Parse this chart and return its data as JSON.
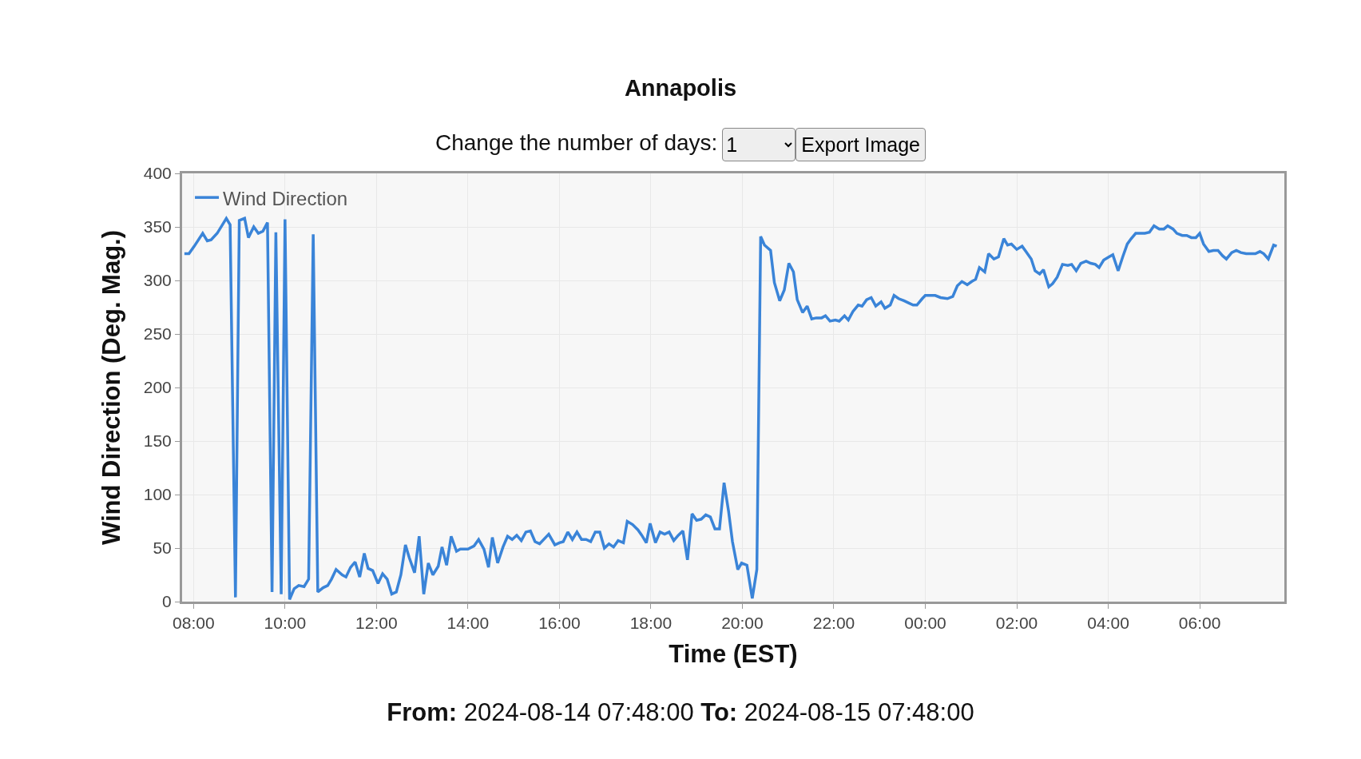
{
  "chart_data": {
    "type": "line",
    "title": "Annapolis",
    "xlabel": "Time (EST)",
    "ylabel": "Wind Direction (Deg. Mag.)",
    "annotations": [
      "Change the number of days:",
      "1",
      "Export Image",
      "From:",
      "2024-08-14 07:48:00",
      "To:",
      "2024-08-15 07:48:00"
    ],
    "x": [
      "2024-08-14T07:48",
      "2024-08-14T07:54",
      "2024-08-14T08:01",
      "2024-08-14T08:12",
      "2024-08-14T08:18",
      "2024-08-14T08:23",
      "2024-08-14T08:31",
      "2024-08-14T08:43",
      "2024-08-14T08:48",
      "2024-08-14T08:55",
      "2024-08-14T09:00",
      "2024-08-14T09:07",
      "2024-08-14T09:12",
      "2024-08-14T09:19",
      "2024-08-14T09:25",
      "2024-08-14T09:31",
      "2024-08-14T09:37",
      "2024-08-14T09:43",
      "2024-08-14T09:48",
      "2024-08-14T09:55",
      "2024-08-14T10:00",
      "2024-08-14T10:06",
      "2024-08-14T10:12",
      "2024-08-14T10:18",
      "2024-08-14T10:25",
      "2024-08-14T10:31",
      "2024-08-14T10:37",
      "2024-08-14T10:43",
      "2024-08-14T10:50",
      "2024-08-14T10:56",
      "2024-08-14T11:01",
      "2024-08-14T11:07",
      "2024-08-14T11:15",
      "2024-08-14T11:20",
      "2024-08-14T11:26",
      "2024-08-14T11:32",
      "2024-08-14T11:38",
      "2024-08-14T11:44",
      "2024-08-14T11:49",
      "2024-08-14T11:55",
      "2024-08-14T12:02",
      "2024-08-14T12:08",
      "2024-08-14T12:14",
      "2024-08-14T12:20",
      "2024-08-14T12:26",
      "2024-08-14T12:32",
      "2024-08-14T12:38",
      "2024-08-14T12:43",
      "2024-08-14T12:50",
      "2024-08-14T12:56",
      "2024-08-14T13:02",
      "2024-08-14T13:08",
      "2024-08-14T13:14",
      "2024-08-14T13:21",
      "2024-08-14T13:26",
      "2024-08-14T13:32",
      "2024-08-14T13:38",
      "2024-08-14T13:45",
      "2024-08-14T13:50",
      "2024-08-14T14:00",
      "2024-08-14T14:08",
      "2024-08-14T14:14",
      "2024-08-14T14:21",
      "2024-08-14T14:27",
      "2024-08-14T14:32",
      "2024-08-14T14:39",
      "2024-08-14T14:46",
      "2024-08-14T14:52",
      "2024-08-14T14:58",
      "2024-08-14T15:04",
      "2024-08-14T15:10",
      "2024-08-14T15:16",
      "2024-08-14T15:22",
      "2024-08-14T15:28",
      "2024-08-14T15:34",
      "2024-08-14T15:46",
      "2024-08-14T15:54",
      "2024-08-14T16:00",
      "2024-08-14T16:05",
      "2024-08-14T16:11",
      "2024-08-14T16:17",
      "2024-08-14T16:23",
      "2024-08-14T16:29",
      "2024-08-14T16:35",
      "2024-08-14T16:41",
      "2024-08-14T16:47",
      "2024-08-14T16:53",
      "2024-08-14T16:59",
      "2024-08-14T17:05",
      "2024-08-14T17:11",
      "2024-08-14T17:17",
      "2024-08-14T17:24",
      "2024-08-14T17:29",
      "2024-08-14T17:36",
      "2024-08-14T17:43",
      "2024-08-14T17:48",
      "2024-08-14T17:54",
      "2024-08-14T17:59",
      "2024-08-14T18:06",
      "2024-08-14T18:12",
      "2024-08-14T18:18",
      "2024-08-14T18:24",
      "2024-08-14T18:30",
      "2024-08-14T18:36",
      "2024-08-14T18:42",
      "2024-08-14T18:48",
      "2024-08-14T18:54",
      "2024-08-14T19:00",
      "2024-08-14T19:06",
      "2024-08-14T19:12",
      "2024-08-14T19:18",
      "2024-08-14T19:24",
      "2024-08-14T19:30",
      "2024-08-14T19:36",
      "2024-08-14T19:42",
      "2024-08-14T19:47",
      "2024-08-14T19:54",
      "2024-08-14T19:59",
      "2024-08-14T20:06",
      "2024-08-14T20:13",
      "2024-08-14T20:19",
      "2024-08-14T20:24",
      "2024-08-14T20:29",
      "2024-08-14T20:37",
      "2024-08-14T20:42",
      "2024-08-14T20:49",
      "2024-08-14T20:55",
      "2024-08-14T21:01",
      "2024-08-14T21:07",
      "2024-08-14T21:12",
      "2024-08-14T21:19",
      "2024-08-14T21:25",
      "2024-08-14T21:31",
      "2024-08-14T21:37",
      "2024-08-14T21:44",
      "2024-08-14T21:49",
      "2024-08-14T21:55",
      "2024-08-14T22:02",
      "2024-08-14T22:07",
      "2024-08-14T22:14",
      "2024-08-14T22:19",
      "2024-08-14T22:25",
      "2024-08-14T22:32",
      "2024-08-14T22:37",
      "2024-08-14T22:43",
      "2024-08-14T22:49",
      "2024-08-14T22:55",
      "2024-08-14T23:02",
      "2024-08-14T23:07",
      "2024-08-14T23:14",
      "2024-08-14T23:19",
      "2024-08-14T23:25",
      "2024-08-14T23:32",
      "2024-08-14T23:38",
      "2024-08-14T23:44",
      "2024-08-14T23:49",
      "2024-08-14T23:56",
      "2024-08-15T00:00",
      "2024-08-15T00:13",
      "2024-08-15T00:20",
      "2024-08-15T00:29",
      "2024-08-15T00:36",
      "2024-08-15T00:42",
      "2024-08-15T00:48",
      "2024-08-15T00:55",
      "2024-08-15T01:01",
      "2024-08-15T01:06",
      "2024-08-15T01:11",
      "2024-08-15T01:18",
      "2024-08-15T01:23",
      "2024-08-15T01:30",
      "2024-08-15T01:36",
      "2024-08-15T01:43",
      "2024-08-15T01:48",
      "2024-08-15T01:53",
      "2024-08-15T02:00",
      "2024-08-15T02:07",
      "2024-08-15T02:12",
      "2024-08-15T02:19",
      "2024-08-15T02:24",
      "2024-08-15T02:30",
      "2024-08-15T02:35",
      "2024-08-15T02:42",
      "2024-08-15T02:47",
      "2024-08-15T02:53",
      "2024-08-15T03:00",
      "2024-08-15T03:07",
      "2024-08-15T03:12",
      "2024-08-15T03:18",
      "2024-08-15T03:24",
      "2024-08-15T03:31",
      "2024-08-15T03:37",
      "2024-08-15T03:43",
      "2024-08-15T03:48",
      "2024-08-15T03:54",
      "2024-08-15T04:01",
      "2024-08-15T04:06",
      "2024-08-15T04:13",
      "2024-08-15T04:19",
      "2024-08-15T04:25",
      "2024-08-15T04:30",
      "2024-08-15T04:36",
      "2024-08-15T04:42",
      "2024-08-15T04:48",
      "2024-08-15T04:54",
      "2024-08-15T05:00",
      "2024-08-15T05:07",
      "2024-08-15T05:13",
      "2024-08-15T05:18",
      "2024-08-15T05:25",
      "2024-08-15T05:30",
      "2024-08-15T05:37",
      "2024-08-15T05:43",
      "2024-08-15T05:49",
      "2024-08-15T05:55",
      "2024-08-15T06:00",
      "2024-08-15T06:05",
      "2024-08-15T06:12",
      "2024-08-15T06:18",
      "2024-08-15T06:24",
      "2024-08-15T06:30",
      "2024-08-15T06:35",
      "2024-08-15T06:42",
      "2024-08-15T06:48",
      "2024-08-15T06:54",
      "2024-08-15T07:01",
      "2024-08-15T07:07",
      "2024-08-15T07:13",
      "2024-08-15T07:19",
      "2024-08-15T07:24",
      "2024-08-15T07:30",
      "2024-08-15T07:37",
      "2024-08-15T07:41"
    ],
    "series": [
      {
        "name": "Wind Direction",
        "color": "#3a84d8",
        "values": [
          325,
          325,
          332,
          344,
          337,
          338,
          344,
          358,
          352,
          4,
          356,
          358,
          340,
          350,
          344,
          346,
          354,
          9,
          345,
          7,
          357,
          2,
          12,
          15,
          14,
          21,
          343,
          9,
          13,
          15,
          21,
          30,
          25,
          23,
          32,
          37,
          23,
          45,
          31,
          29,
          17,
          26,
          21,
          7,
          9,
          25,
          53,
          41,
          27,
          61,
          7,
          36,
          25,
          33,
          51,
          34,
          61,
          47,
          49,
          49,
          52,
          58,
          49,
          32,
          60,
          36,
          51,
          61,
          58,
          62,
          57,
          65,
          66,
          56,
          54,
          63,
          53,
          55,
          56,
          65,
          58,
          65,
          58,
          58,
          56,
          65,
          65,
          50,
          54,
          51,
          57,
          55,
          75,
          72,
          67,
          62,
          55,
          73,
          55,
          65,
          63,
          65,
          57,
          62,
          66,
          39,
          82,
          76,
          77,
          81,
          79,
          68,
          68,
          111,
          84,
          56,
          30,
          36,
          34,
          3,
          30,
          341,
          333,
          328,
          298,
          281,
          291,
          316,
          308,
          282,
          270,
          276,
          264,
          265,
          265,
          267,
          262,
          263,
          262,
          267,
          263,
          271,
          277,
          276,
          282,
          284,
          276,
          280,
          274,
          277,
          286,
          283,
          281,
          279,
          277,
          277,
          283,
          286,
          286,
          284,
          283,
          285,
          295,
          299,
          296,
          299,
          301,
          312,
          308,
          325,
          320,
          322,
          339,
          333,
          334,
          329,
          332,
          327,
          320,
          309,
          306,
          310,
          294,
          297,
          303,
          315,
          314,
          315,
          309,
          316,
          318,
          316,
          315,
          312,
          319,
          322,
          324,
          309,
          322,
          334,
          339,
          344,
          344,
          344,
          345,
          351,
          348,
          348,
          351,
          348,
          344,
          342,
          342,
          340,
          340,
          344,
          334,
          327,
          328,
          328,
          323,
          320,
          326,
          328,
          326,
          325,
          325,
          325,
          327,
          325,
          320,
          333,
          332
        ]
      }
    ],
    "xlim": [
      "2024-08-14T07:45",
      "2024-08-15T07:51"
    ],
    "xticks": [
      {
        "value": "2024-08-14T08:00",
        "label": "08:00"
      },
      {
        "value": "2024-08-14T10:00",
        "label": "10:00"
      },
      {
        "value": "2024-08-14T12:00",
        "label": "12:00"
      },
      {
        "value": "2024-08-14T14:00",
        "label": "14:00"
      },
      {
        "value": "2024-08-14T16:00",
        "label": "16:00"
      },
      {
        "value": "2024-08-14T18:00",
        "label": "18:00"
      },
      {
        "value": "2024-08-14T20:00",
        "label": "20:00"
      },
      {
        "value": "2024-08-14T22:00",
        "label": "22:00"
      },
      {
        "value": "2024-08-15T00:00",
        "label": "00:00"
      },
      {
        "value": "2024-08-15T02:00",
        "label": "02:00"
      },
      {
        "value": "2024-08-15T04:00",
        "label": "04:00"
      },
      {
        "value": "2024-08-15T06:00",
        "label": "06:00"
      }
    ],
    "ylim": [
      0,
      400
    ],
    "yticks": [
      0,
      50,
      100,
      150,
      200,
      250,
      300,
      350,
      400
    ],
    "grid": true,
    "legend": "top left",
    "marker": "none",
    "line_style": "solid"
  }
}
